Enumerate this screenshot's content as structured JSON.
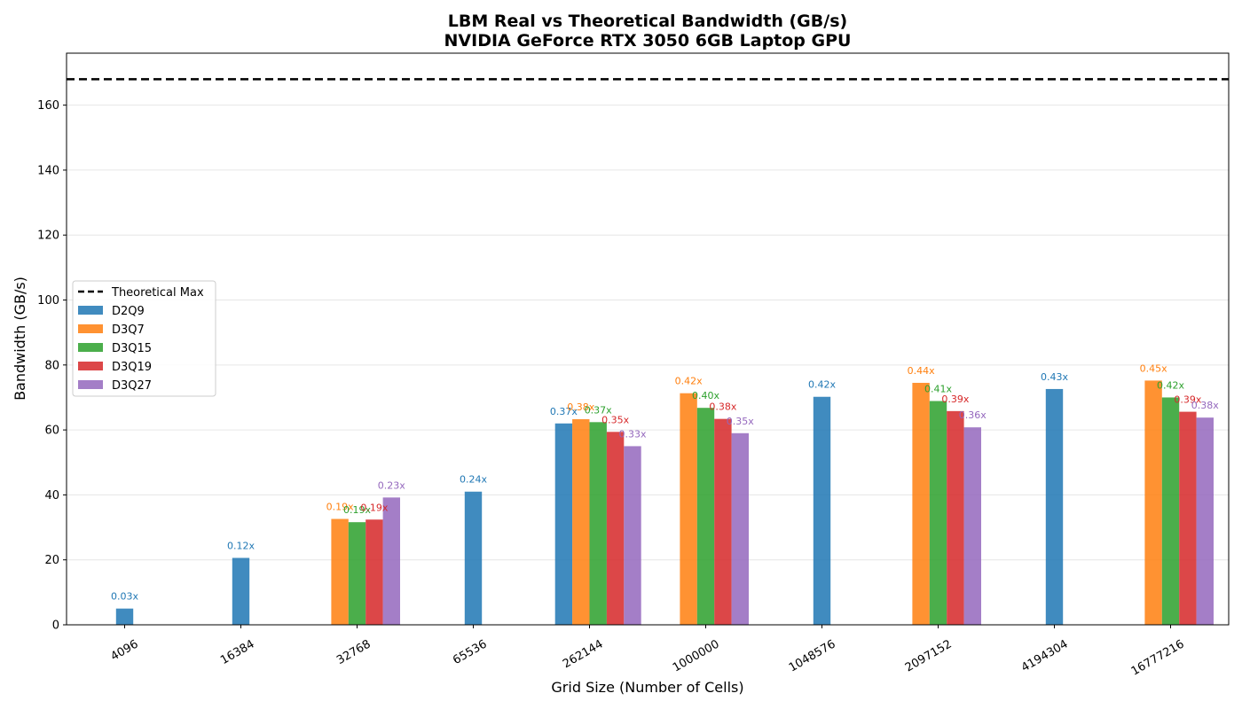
{
  "chart_data": {
    "type": "bar",
    "title": "LBM Real vs Theoretical Bandwidth (GB/s)",
    "subtitle": "NVIDIA GeForce RTX 3050 6GB Laptop GPU",
    "xlabel": "Grid Size (Number of Cells)",
    "ylabel": "Bandwidth (GB/s)",
    "ylim": [
      0,
      176
    ],
    "yticks": [
      0,
      20,
      40,
      60,
      80,
      100,
      120,
      140,
      160
    ],
    "grid": "y",
    "legend_position": "center-left",
    "theoretical_max": {
      "name": "Theoretical Max",
      "value": 168,
      "color": "#000000"
    },
    "categories": [
      "4096",
      "16384",
      "32768",
      "65536",
      "262144",
      "1000000",
      "1048576",
      "2097152",
      "4194304",
      "16777216"
    ],
    "series": [
      {
        "name": "D2Q9",
        "color": "#1f77b4",
        "values": [
          5.0,
          20.6,
          null,
          41.0,
          62.0,
          null,
          70.2,
          null,
          72.6,
          null
        ],
        "labels": [
          "0.03x",
          "0.12x",
          null,
          "0.24x",
          "0.37x",
          null,
          "0.42x",
          null,
          "0.43x",
          null
        ]
      },
      {
        "name": "D3Q7",
        "color": "#ff7f0e",
        "values": [
          null,
          null,
          32.6,
          null,
          63.3,
          71.3,
          null,
          74.5,
          null,
          75.2
        ],
        "labels": [
          null,
          null,
          "0.19x",
          null,
          "0.38x",
          "0.42x",
          null,
          "0.44x",
          null,
          "0.45x"
        ]
      },
      {
        "name": "D3Q15",
        "color": "#2ca02c",
        "values": [
          null,
          null,
          31.6,
          null,
          62.4,
          66.8,
          null,
          68.9,
          null,
          70.0
        ],
        "labels": [
          null,
          null,
          "0.19x",
          null,
          "0.37x",
          "0.40x",
          null,
          "0.41x",
          null,
          "0.42x"
        ]
      },
      {
        "name": "D3Q19",
        "color": "#d62728",
        "values": [
          null,
          null,
          32.4,
          null,
          59.4,
          63.4,
          null,
          65.8,
          null,
          65.6
        ],
        "labels": [
          null,
          null,
          "0.19x",
          null,
          "0.35x",
          "0.38x",
          null,
          "0.39x",
          null,
          "0.39x"
        ]
      },
      {
        "name": "D3Q27",
        "color": "#9467bd",
        "values": [
          null,
          null,
          39.2,
          null,
          55.0,
          59.0,
          null,
          60.8,
          null,
          63.8
        ],
        "labels": [
          null,
          null,
          "0.23x",
          null,
          "0.33x",
          "0.35x",
          null,
          "0.36x",
          null,
          "0.38x"
        ]
      }
    ]
  }
}
